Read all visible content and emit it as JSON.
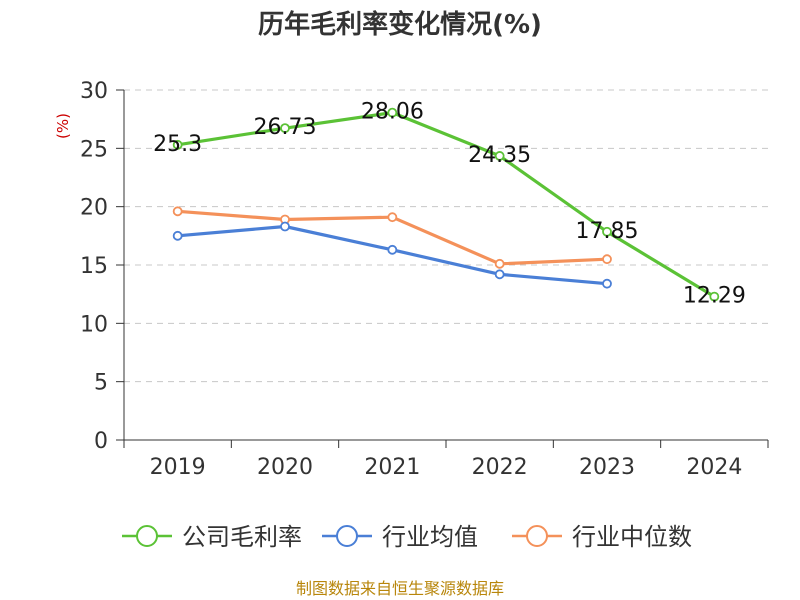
{
  "chart_data": {
    "type": "line",
    "title": "历年毛利率变化情况(%)",
    "ylabel": "(%)",
    "xlabel": "",
    "categories": [
      "2019",
      "2020",
      "2021",
      "2022",
      "2023",
      "2024"
    ],
    "ylim": [
      0,
      30
    ],
    "yticks": [
      "0",
      "5",
      "10",
      "15",
      "20",
      "25",
      "30"
    ],
    "grid": true,
    "legend_position": "bottom",
    "series": [
      {
        "name": "公司毛利率",
        "color": "#5bc236",
        "values": [
          25.3,
          26.73,
          28.06,
          24.35,
          17.85,
          12.29
        ],
        "labels": [
          "25.3",
          "26.73",
          "28.06",
          "24.35",
          "17.85",
          "12.29"
        ]
      },
      {
        "name": "行业均值",
        "color": "#4a7fd6",
        "values": [
          17.5,
          18.3,
          16.3,
          14.2,
          13.4,
          null
        ]
      },
      {
        "name": "行业中位数",
        "color": "#f4915a",
        "values": [
          19.6,
          18.9,
          19.1,
          15.1,
          15.5,
          null
        ]
      }
    ],
    "source": "制图数据来自恒生聚源数据库"
  }
}
